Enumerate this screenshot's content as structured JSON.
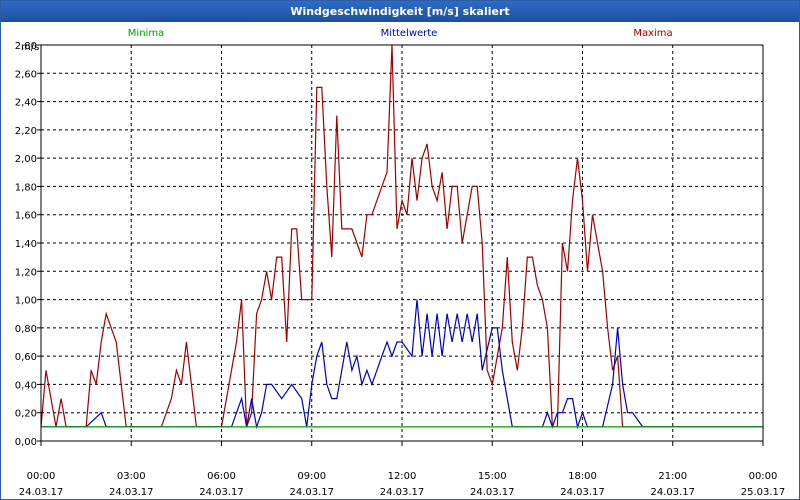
{
  "window": {
    "title": "Windgeschwindigkeit [m/s] skaliert"
  },
  "chart_data": {
    "type": "line",
    "title": "Windgeschwindigkeit [m/s] skaliert",
    "ylabel": "m/s",
    "ylim": [
      0,
      2.8
    ],
    "xlim": [
      "24.03.17 00:00",
      "25.03.17 00:00"
    ],
    "yticks": [
      "0,00",
      "0,20",
      "0,40",
      "0,60",
      "0,80",
      "1,00",
      "1,20",
      "1,40",
      "1,60",
      "1,80",
      "2,00",
      "2,20",
      "2,40",
      "2,60",
      "2,80"
    ],
    "xticks": [
      {
        "time": "00:00",
        "date": "24.03.17"
      },
      {
        "time": "03:00",
        "date": "24.03.17"
      },
      {
        "time": "06:00",
        "date": "24.03.17"
      },
      {
        "time": "09:00",
        "date": "24.03.17"
      },
      {
        "time": "12:00",
        "date": "24.03.17"
      },
      {
        "time": "15:00",
        "date": "24.03.17"
      },
      {
        "time": "18:00",
        "date": "24.03.17"
      },
      {
        "time": "21:00",
        "date": "24.03.17"
      },
      {
        "time": "00:00",
        "date": "25.03.17"
      }
    ],
    "grid": true,
    "legend_position": "top",
    "series": [
      {
        "name": "Minima",
        "color": "#00a000",
        "x": [
          "00:00",
          "24:00"
        ],
        "values": [
          0.1,
          0.1
        ]
      },
      {
        "name": "Mittelwerte",
        "color": "#0000c0",
        "x": [
          "00:00",
          "01:30",
          "02:00",
          "02:10",
          "02:20",
          "02:30",
          "06:20",
          "06:30",
          "06:40",
          "06:50",
          "07:00",
          "07:10",
          "07:20",
          "07:30",
          "07:40",
          "08:00",
          "08:20",
          "08:40",
          "08:50",
          "09:00",
          "09:10",
          "09:20",
          "09:30",
          "09:40",
          "09:50",
          "10:00",
          "10:10",
          "10:20",
          "10:30",
          "10:40",
          "10:50",
          "11:00",
          "11:10",
          "11:20",
          "11:30",
          "11:40",
          "11:50",
          "12:00",
          "12:20",
          "12:30",
          "12:40",
          "12:50",
          "13:00",
          "13:10",
          "13:20",
          "13:30",
          "13:40",
          "13:50",
          "14:00",
          "14:10",
          "14:20",
          "14:30",
          "14:40",
          "15:00",
          "15:10",
          "15:20",
          "15:30",
          "15:40",
          "16:00",
          "16:40",
          "16:50",
          "17:00",
          "17:10",
          "17:20",
          "17:30",
          "17:40",
          "17:50",
          "18:00",
          "18:10",
          "18:20",
          "18:30",
          "18:40",
          "19:00",
          "19:10",
          "19:20",
          "19:30",
          "19:40",
          "20:00",
          "24:00"
        ],
        "values": [
          0.1,
          0.1,
          0.2,
          0.1,
          0.1,
          0.1,
          0.1,
          0.2,
          0.3,
          0.1,
          0.3,
          0.1,
          0.2,
          0.4,
          0.4,
          0.3,
          0.4,
          0.3,
          0.1,
          0.4,
          0.6,
          0.7,
          0.4,
          0.3,
          0.3,
          0.5,
          0.7,
          0.5,
          0.6,
          0.4,
          0.5,
          0.4,
          0.5,
          0.6,
          0.7,
          0.6,
          0.7,
          0.7,
          0.6,
          1.0,
          0.6,
          0.9,
          0.6,
          0.9,
          0.6,
          0.9,
          0.7,
          0.9,
          0.7,
          0.9,
          0.7,
          0.9,
          0.5,
          0.8,
          0.8,
          0.5,
          0.3,
          0.1,
          0.1,
          0.1,
          0.2,
          0.1,
          0.2,
          0.2,
          0.3,
          0.3,
          0.1,
          0.2,
          0.1,
          0.1,
          0.1,
          0.1,
          0.4,
          0.8,
          0.4,
          0.2,
          0.2,
          0.1,
          0.1
        ]
      },
      {
        "name": "Maxima",
        "color": "#a00000",
        "x": [
          "00:00",
          "00:10",
          "00:30",
          "00:40",
          "00:50",
          "01:30",
          "01:40",
          "01:50",
          "02:00",
          "02:10",
          "02:20",
          "02:30",
          "02:50",
          "03:20",
          "03:30",
          "04:00",
          "04:20",
          "04:30",
          "04:40",
          "04:50",
          "05:00",
          "05:10",
          "05:20",
          "06:00",
          "06:10",
          "06:20",
          "06:30",
          "06:40",
          "06:50",
          "07:00",
          "07:10",
          "07:20",
          "07:30",
          "07:40",
          "07:50",
          "08:00",
          "08:10",
          "08:20",
          "08:30",
          "08:40",
          "08:50",
          "09:00",
          "09:10",
          "09:20",
          "09:30",
          "09:40",
          "09:50",
          "10:00",
          "10:10",
          "10:20",
          "10:30",
          "10:40",
          "10:50",
          "11:00",
          "11:10",
          "11:20",
          "11:30",
          "11:40",
          "11:50",
          "12:00",
          "12:10",
          "12:20",
          "12:30",
          "12:40",
          "12:50",
          "13:00",
          "13:10",
          "13:20",
          "13:30",
          "13:40",
          "13:50",
          "14:00",
          "14:10",
          "14:20",
          "14:30",
          "14:40",
          "14:50",
          "15:00",
          "15:10",
          "15:20",
          "15:30",
          "15:40",
          "15:50",
          "16:00",
          "16:10",
          "16:20",
          "16:30",
          "16:40",
          "16:50",
          "17:00",
          "17:10",
          "17:20",
          "17:30",
          "17:40",
          "17:50",
          "18:00",
          "18:10",
          "18:20",
          "18:30",
          "18:40",
          "18:50",
          "19:00",
          "19:10",
          "19:20",
          "19:30",
          "19:40",
          "19:50",
          "20:00",
          "24:00"
        ],
        "values": [
          0.1,
          0.5,
          0.1,
          0.3,
          0.1,
          0.1,
          0.5,
          0.4,
          0.7,
          0.9,
          0.8,
          0.7,
          0.1,
          0.1,
          0.1,
          0.1,
          0.3,
          0.5,
          0.4,
          0.7,
          0.4,
          0.1,
          0.1,
          0.1,
          0.3,
          0.5,
          0.7,
          1.0,
          0.1,
          0.2,
          0.9,
          1.0,
          1.2,
          1.0,
          1.3,
          1.3,
          0.7,
          1.5,
          1.5,
          1.0,
          1.0,
          1.0,
          2.5,
          2.5,
          1.8,
          1.3,
          2.3,
          1.5,
          1.5,
          1.5,
          1.4,
          1.3,
          1.6,
          1.6,
          1.7,
          1.8,
          1.9,
          2.8,
          1.5,
          1.7,
          1.6,
          2.0,
          1.7,
          2.0,
          2.1,
          1.8,
          1.7,
          1.9,
          1.5,
          1.8,
          1.8,
          1.4,
          1.6,
          1.8,
          1.8,
          1.4,
          0.5,
          0.4,
          0.6,
          0.8,
          1.3,
          0.7,
          0.5,
          0.8,
          1.3,
          1.3,
          1.1,
          1.0,
          0.8,
          0.1,
          0.1,
          1.4,
          1.2,
          1.7,
          2.0,
          1.7,
          1.2,
          1.6,
          1.4,
          1.2,
          0.8,
          0.5,
          0.6,
          0.1,
          0.1,
          0.1,
          0.1,
          0.1,
          0.1
        ]
      }
    ]
  }
}
